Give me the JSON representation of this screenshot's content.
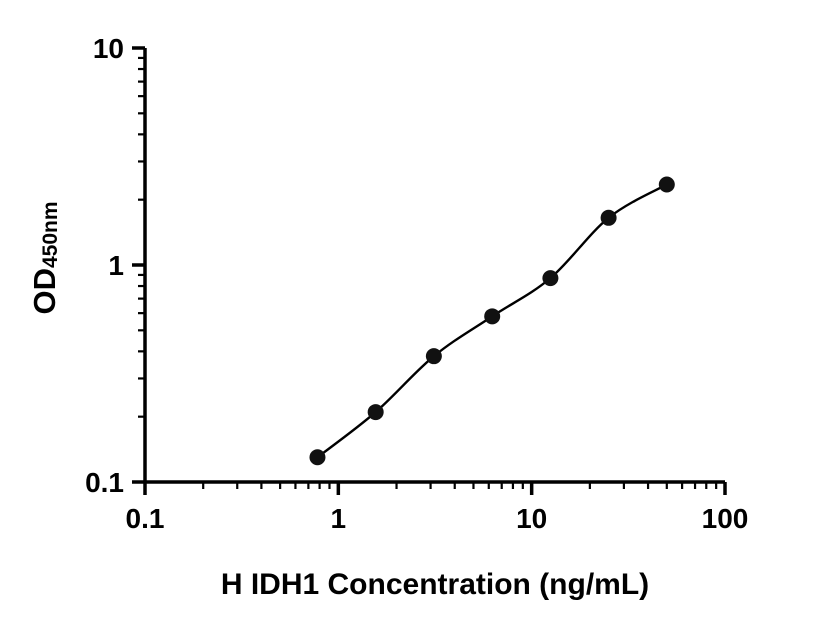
{
  "chart_data": {
    "type": "scatter",
    "title": "",
    "xlabel": "H IDH1 Concentration (ng/mL)",
    "ylabel": "OD",
    "ylabel_sub": "450nm",
    "x_scale": "log",
    "y_scale": "log",
    "xlim": [
      0.1,
      100
    ],
    "ylim": [
      0.1,
      10
    ],
    "x_ticks": [
      "0.1",
      "1",
      "10",
      "100"
    ],
    "x_tick_values": [
      0.1,
      1,
      10,
      100
    ],
    "y_ticks": [
      "0.1",
      "1",
      "10"
    ],
    "y_tick_values": [
      0.1,
      1,
      10
    ],
    "grid": "off",
    "legend": "none",
    "x": [
      0.78,
      1.56,
      3.12,
      6.25,
      12.5,
      25,
      50
    ],
    "y": [
      0.13,
      0.21,
      0.38,
      0.58,
      0.87,
      1.65,
      2.35
    ],
    "line_color": "#000000",
    "marker_color": "#111111",
    "axis_color": "#000000"
  }
}
